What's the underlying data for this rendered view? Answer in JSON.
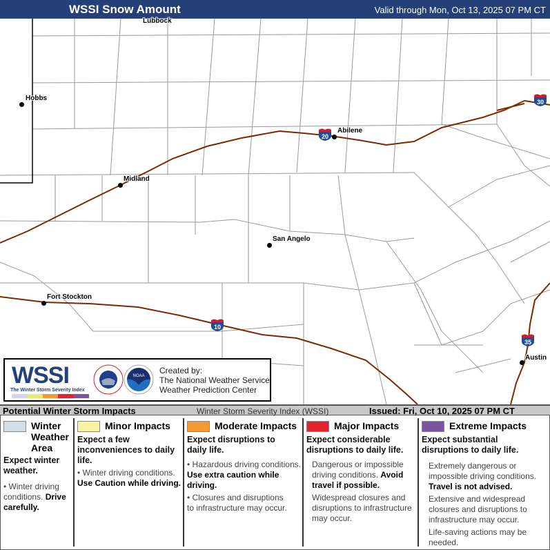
{
  "header": {
    "title": "WSSI Snow Amount",
    "valid": "Valid through Mon, Oct 13, 2025 07 PM CT"
  },
  "map": {
    "cities": [
      {
        "name": "Lubbock"
      },
      {
        "name": "Hobbs"
      },
      {
        "name": "Midland"
      },
      {
        "name": "Abilene"
      },
      {
        "name": "San Angelo"
      },
      {
        "name": "Fort Stockton"
      },
      {
        "name": "Austin"
      }
    ],
    "interstates": [
      "30",
      "20",
      "10",
      "35"
    ],
    "colors": {
      "highway": "#7a2a00",
      "county_line": "#9a9a9a",
      "state_line": "#000000",
      "shield_blue": "#1f4e96",
      "shield_red": "#c8203a"
    }
  },
  "logo": {
    "title": "WSSI",
    "subtitle": "The Winter Storm Severity Index",
    "created_by": "Created by:",
    "org1": "The National Weather Service",
    "org2": "Weather Prediction Center",
    "seal1": "NATIONAL WEATHER SERVICE",
    "seal2": "NOAA"
  },
  "legend_bar": {
    "left": "Potential Winter Storm Impacts",
    "center": "Winter Storm Severity Index (WSSI)",
    "right": "Issued: Fri, Oct 10, 2025 07 PM CT"
  },
  "legend": [
    {
      "title": "Winter Weather Area",
      "color": "#d3dfe8",
      "expect": "Expect winter weather.",
      "b1": "Winter driving conditions.",
      "b1_bold": "Drive carefully."
    },
    {
      "title": "Minor Impacts",
      "color": "#f7f3a0",
      "expect": "Expect a few inconveniences to daily life.",
      "b1": "Winter driving conditions.",
      "b1_bold": "Use Caution while driving."
    },
    {
      "title": "Moderate Impacts",
      "color": "#f59a30",
      "expect": "Expect disruptions to daily life.",
      "b1": "Hazardous driving conditions.",
      "b1_bold": "Use extra caution while driving.",
      "b2": "Closures and disruptions to infrastructure may occur."
    },
    {
      "title": "Major Impacts",
      "color": "#e4242c",
      "expect": "Expect considerable disruptions to daily life.",
      "b1": "Dangerous or impossible driving conditions.",
      "b1_bold": "Avoid travel if possible.",
      "b2": "Widespread closures and disruptions to infrastructure may occur."
    },
    {
      "title": "Extreme Impacts",
      "color": "#7b53a3",
      "expect": "Expect substantial disruptions to daily life.",
      "b1": "Extremely dangerous or impossible driving conditions.",
      "b1_bold": "Travel is not advised.",
      "b2": "Extensive and widespread closures and disruptions to infrastructure may occur.",
      "b3": "Life-saving actions may be needed."
    }
  ]
}
